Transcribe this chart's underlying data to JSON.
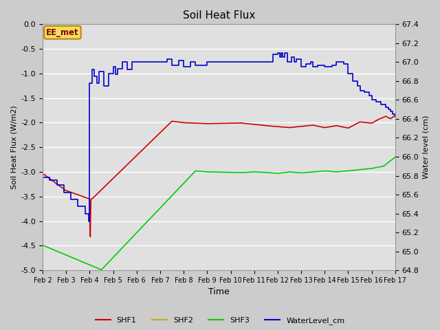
{
  "title": "Soil Heat Flux",
  "xlabel": "Time",
  "ylabel_left": "Soil Heat Flux (W/m2)",
  "ylabel_right": "Water level (cm)",
  "ylim_left": [
    -5.0,
    0.0
  ],
  "ylim_right": [
    64.8,
    67.4
  ],
  "background_color": "#e8e8e8",
  "fig_bg_color": "#d8d8d8",
  "grid_color": "#ffffff",
  "annotation_text": "EE_met",
  "annotation_bg": "#f0e060",
  "annotation_border": "#b8860b",
  "annotation_fg": "#8b0000",
  "colors": {
    "SHF1": "#cc0000",
    "SHF2": "#ccaa00",
    "SHF3": "#00cc00",
    "WaterLevel_cm": "#0000cc"
  },
  "lw": 1.2,
  "n_days": 15,
  "xtick_labels": [
    "Feb 2",
    "Feb 3",
    "Feb 4",
    "Feb 5",
    "Feb 6",
    "Feb 7",
    "Feb 8",
    "Feb 9",
    "Feb 10",
    "Feb 11",
    "Feb 12",
    "Feb 13",
    "Feb 14",
    "Feb 15",
    "Feb 16",
    "Feb 17"
  ],
  "wl_data": [
    [
      0.0,
      65.78
    ],
    [
      0.3,
      65.75
    ],
    [
      0.6,
      65.7
    ],
    [
      0.9,
      65.62
    ],
    [
      1.2,
      65.55
    ],
    [
      1.5,
      65.48
    ],
    [
      1.8,
      65.4
    ],
    [
      1.95,
      65.32
    ],
    [
      2.0,
      66.78
    ],
    [
      2.1,
      66.92
    ],
    [
      2.2,
      66.85
    ],
    [
      2.3,
      66.78
    ],
    [
      2.4,
      66.9
    ],
    [
      2.6,
      66.75
    ],
    [
      2.8,
      66.88
    ],
    [
      3.0,
      66.95
    ],
    [
      3.1,
      66.87
    ],
    [
      3.2,
      66.93
    ],
    [
      3.4,
      67.0
    ],
    [
      3.6,
      66.92
    ],
    [
      3.8,
      67.0
    ],
    [
      4.0,
      67.0
    ],
    [
      4.5,
      67.0
    ],
    [
      5.0,
      67.0
    ],
    [
      5.3,
      67.03
    ],
    [
      5.5,
      66.97
    ],
    [
      5.8,
      67.02
    ],
    [
      6.0,
      66.95
    ],
    [
      6.3,
      67.0
    ],
    [
      6.5,
      66.97
    ],
    [
      7.0,
      67.0
    ],
    [
      7.5,
      67.0
    ],
    [
      8.0,
      67.0
    ],
    [
      8.5,
      67.0
    ],
    [
      9.0,
      67.0
    ],
    [
      9.5,
      67.0
    ],
    [
      9.8,
      67.08
    ],
    [
      10.0,
      67.1
    ],
    [
      10.1,
      67.05
    ],
    [
      10.15,
      67.1
    ],
    [
      10.2,
      67.05
    ],
    [
      10.3,
      67.1
    ],
    [
      10.4,
      67.0
    ],
    [
      10.6,
      67.05
    ],
    [
      10.7,
      67.0
    ],
    [
      10.8,
      67.03
    ],
    [
      11.0,
      66.95
    ],
    [
      11.2,
      66.98
    ],
    [
      11.4,
      67.0
    ],
    [
      11.5,
      66.95
    ],
    [
      11.7,
      66.97
    ],
    [
      12.0,
      66.95
    ],
    [
      12.3,
      66.97
    ],
    [
      12.5,
      67.0
    ],
    [
      12.8,
      66.98
    ],
    [
      13.0,
      66.88
    ],
    [
      13.2,
      66.8
    ],
    [
      13.4,
      66.75
    ],
    [
      13.5,
      66.7
    ],
    [
      13.7,
      66.68
    ],
    [
      13.9,
      66.65
    ],
    [
      14.0,
      66.6
    ],
    [
      14.2,
      66.58
    ],
    [
      14.4,
      66.55
    ],
    [
      14.5,
      66.55
    ],
    [
      14.6,
      66.52
    ],
    [
      14.7,
      66.5
    ],
    [
      14.8,
      66.48
    ],
    [
      14.9,
      66.45
    ],
    [
      15.0,
      66.42
    ]
  ]
}
